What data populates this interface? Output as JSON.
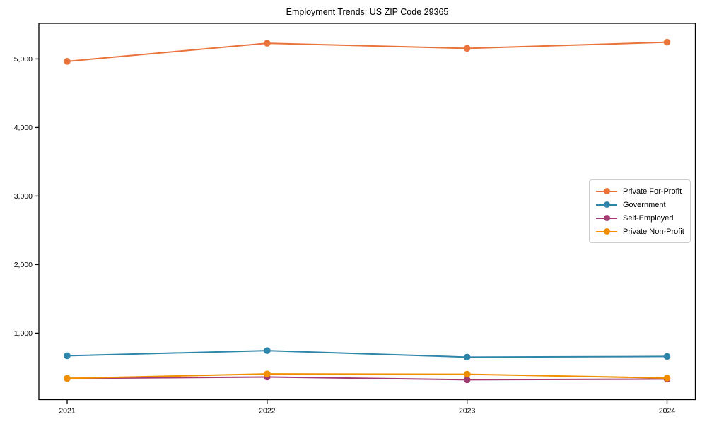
{
  "chart_data": {
    "type": "line",
    "title": "Employment Trends: US ZIP Code 29365",
    "xlabel": "",
    "ylabel": "",
    "x": [
      "2021",
      "2022",
      "2023",
      "2024"
    ],
    "series": [
      {
        "name": "Private For-Profit",
        "color": "#e8743b",
        "values": [
          4965,
          5230,
          5155,
          5245
        ]
      },
      {
        "name": "Government",
        "color": "#2e86ab",
        "values": [
          670,
          745,
          650,
          660
        ]
      },
      {
        "name": "Self-Employed",
        "color": "#a23b72",
        "values": [
          340,
          360,
          320,
          330
        ]
      },
      {
        "name": "Private Non-Profit",
        "color": "#f18f01",
        "values": [
          340,
          405,
          400,
          345
        ]
      }
    ],
    "yticks": [
      1000,
      2000,
      3000,
      4000,
      5000
    ],
    "ytick_labels": [
      "1,000",
      "2,000",
      "3,000",
      "4,000",
      "5,000"
    ],
    "ylim": [
      30,
      5520
    ],
    "grid": false,
    "marker": "circle",
    "legend_position": "center right",
    "axis_color": "#000000",
    "background_color": "#ffffff"
  }
}
